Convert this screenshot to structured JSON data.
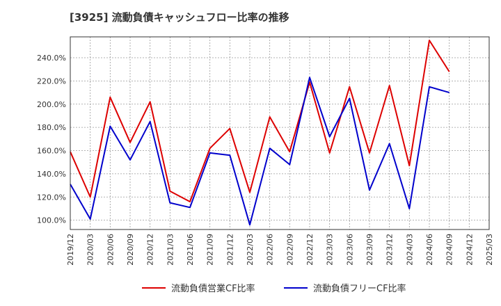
{
  "chart_data": {
    "type": "line",
    "title": "[3925]  流動負債キャッシュフロー比率の推移",
    "xlabel": "",
    "ylabel": "",
    "ylim": [
      92,
      258
    ],
    "yticks": [
      100,
      120,
      140,
      160,
      180,
      200,
      220,
      240
    ],
    "ytick_labels": [
      "100.0%",
      "120.0%",
      "140.0%",
      "160.0%",
      "180.0%",
      "200.0%",
      "220.0%",
      "240.0%"
    ],
    "x_categories": [
      "2019/12",
      "2020/03",
      "2020/06",
      "2020/09",
      "2020/12",
      "2021/03",
      "2021/06",
      "2021/09",
      "2021/12",
      "2022/03",
      "2022/06",
      "2022/09",
      "2022/12",
      "2023/03",
      "2023/06",
      "2023/09",
      "2023/12",
      "2024/03",
      "2024/06",
      "2024/09",
      "2024/12",
      "2025/03"
    ],
    "grid": true,
    "legend_position": "bottom",
    "series": [
      {
        "name": "流動負債営業CF比率",
        "color": "#dd0000",
        "values": [
          159,
          120,
          206,
          167,
          202,
          125,
          116,
          162,
          179,
          124,
          189,
          159,
          219,
          158,
          215,
          158,
          216,
          147,
          255,
          228,
          null,
          null
        ]
      },
      {
        "name": "流動負債フリーCF比率",
        "color": "#0000cc",
        "values": [
          131,
          101,
          181,
          152,
          185,
          115,
          111,
          158,
          156,
          96,
          162,
          148,
          223,
          172,
          205,
          126,
          166,
          110,
          215,
          210,
          null,
          null
        ]
      }
    ]
  }
}
